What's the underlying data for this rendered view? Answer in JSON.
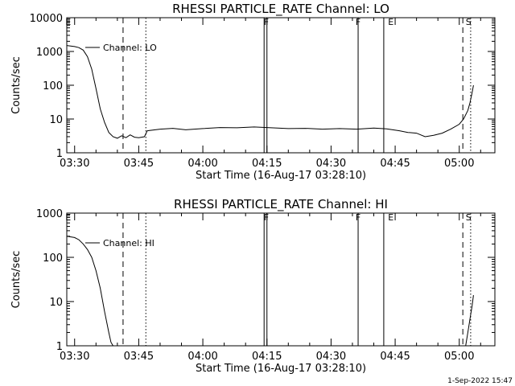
{
  "footer_timestamp": "1-Sep-2022 15:47",
  "chart_data": [
    {
      "type": "line",
      "title": "RHESSI PARTICLE_RATE Channel: LO",
      "xlabel": "Start Time (16-Aug-17 03:28:10)",
      "ylabel": "Counts/sec",
      "yscale": "log",
      "ylim": [
        1,
        10000
      ],
      "yticks": [
        {
          "v": 1,
          "label": "1"
        },
        {
          "v": 10,
          "label": "10"
        },
        {
          "v": 100,
          "label": "100"
        },
        {
          "v": 1000,
          "label": "1000"
        },
        {
          "v": 10000,
          "label": "10000"
        }
      ],
      "xlim": [
        "03:28:10",
        "05:08:20"
      ],
      "xticks": [
        "03:30",
        "03:45",
        "04:00",
        "04:15",
        "04:30",
        "04:45",
        "05:00"
      ],
      "legend": "Channel: LO",
      "flags": [
        {
          "time": "03:28:30",
          "label": "E"
        },
        {
          "time": "04:14:50",
          "label": "F"
        },
        {
          "time": "04:36:20",
          "label": "F"
        },
        {
          "time": "04:44:00",
          "label": "E"
        },
        {
          "time": "05:02:10",
          "label": "S"
        }
      ],
      "vlines": [
        {
          "time": "03:41:20",
          "style": "dashed"
        },
        {
          "time": "03:46:40",
          "style": "dotted"
        },
        {
          "time": "04:14:20",
          "style": "solid"
        },
        {
          "time": "04:15:00",
          "style": "solid"
        },
        {
          "time": "04:36:20",
          "style": "solid"
        },
        {
          "time": "04:42:20",
          "style": "solid"
        },
        {
          "time": "05:00:50",
          "style": "dashed"
        },
        {
          "time": "05:02:40",
          "style": "dotted"
        }
      ],
      "series": [
        {
          "name": "Channel: LO",
          "x": [
            "03:28:10",
            "03:30:00",
            "03:31:00",
            "03:32:00",
            "03:33:00",
            "03:34:00",
            "03:35:00",
            "03:36:00",
            "03:37:00",
            "03:38:00",
            "03:39:00",
            "03:40:00",
            "03:41:00",
            "03:42:00",
            "03:43:00",
            "03:44:00",
            "03:45:00",
            "03:46:20",
            "03:47:00",
            "03:50:00",
            "03:53:00",
            "03:56:00",
            "04:00:00",
            "04:04:00",
            "04:08:00",
            "04:12:00",
            "04:16:00",
            "04:20:00",
            "04:24:00",
            "04:28:00",
            "04:32:00",
            "04:36:00",
            "04:40:00",
            "04:43:00",
            "04:46:00",
            "04:48:00",
            "04:50:00",
            "04:52:00",
            "04:54:00",
            "04:56:00",
            "04:58:00",
            "05:00:00",
            "05:01:00",
            "05:02:00",
            "05:02:30",
            "05:03:00",
            "05:03:20"
          ],
          "y": [
            1500,
            1400,
            1300,
            1100,
            700,
            300,
            80,
            20,
            8,
            4,
            3,
            2.7,
            3.2,
            2.8,
            3.4,
            2.9,
            2.8,
            3,
            4.5,
            5,
            5.3,
            4.8,
            5.2,
            5.6,
            5.5,
            5.8,
            5.5,
            5.2,
            5.3,
            5,
            5.2,
            5,
            5.4,
            5.1,
            4.5,
            4,
            3.8,
            3,
            3.3,
            3.8,
            5,
            7,
            10,
            18,
            30,
            60,
            100
          ]
        }
      ]
    },
    {
      "type": "line",
      "title": "RHESSI PARTICLE_RATE Channel: HI",
      "xlabel": "Start Time (16-Aug-17 03:28:10)",
      "ylabel": "Counts/sec",
      "yscale": "log",
      "ylim": [
        1,
        1000
      ],
      "yticks": [
        {
          "v": 1,
          "label": "1"
        },
        {
          "v": 10,
          "label": "10"
        },
        {
          "v": 100,
          "label": "100"
        },
        {
          "v": 1000,
          "label": "1000"
        }
      ],
      "xlim": [
        "03:28:10",
        "05:08:20"
      ],
      "xticks": [
        "03:30",
        "03:45",
        "04:00",
        "04:15",
        "04:30",
        "04:45",
        "05:00"
      ],
      "legend": "Channel: HI",
      "flags": [
        {
          "time": "03:28:30",
          "label": "E"
        },
        {
          "time": "04:14:50",
          "label": "F"
        },
        {
          "time": "04:36:20",
          "label": "F"
        },
        {
          "time": "04:44:00",
          "label": "E"
        },
        {
          "time": "05:02:10",
          "label": "S"
        }
      ],
      "vlines": [
        {
          "time": "03:41:20",
          "style": "dashed"
        },
        {
          "time": "03:46:40",
          "style": "dotted"
        },
        {
          "time": "04:14:20",
          "style": "solid"
        },
        {
          "time": "04:15:00",
          "style": "solid"
        },
        {
          "time": "04:36:20",
          "style": "solid"
        },
        {
          "time": "04:42:20",
          "style": "solid"
        },
        {
          "time": "05:00:50",
          "style": "dashed"
        },
        {
          "time": "05:02:40",
          "style": "dotted"
        }
      ],
      "series": [
        {
          "name": "Channel: HI",
          "x": [
            "03:28:10",
            "03:30:00",
            "03:31:00",
            "03:32:00",
            "03:33:00",
            "03:34:00",
            "03:35:00",
            "03:36:00",
            "03:37:00",
            "03:38:00",
            "03:38:30",
            "03:39:00"
          ],
          "y": [
            300,
            280,
            250,
            200,
            150,
            100,
            50,
            20,
            6,
            2,
            1.2,
            1
          ]
        },
        {
          "name": "Channel: HI",
          "x": [
            "05:01:30",
            "05:02:00",
            "05:02:30",
            "05:03:00",
            "05:03:20"
          ],
          "y": [
            1,
            2,
            4,
            8,
            14
          ]
        }
      ]
    }
  ]
}
